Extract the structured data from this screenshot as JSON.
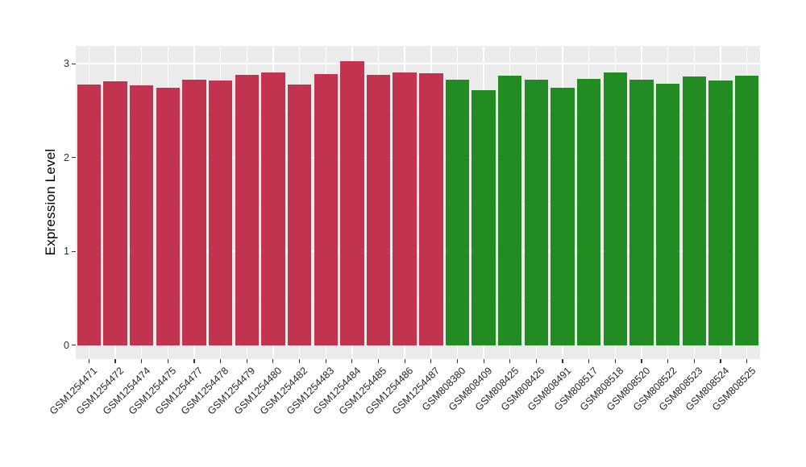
{
  "figure": {
    "background": "#FFFFFF",
    "panel_background": "#EBEBEB",
    "gridline_color": "#FFFFFF",
    "axis_tick_color": "#333333",
    "axis_text_color": "#262626"
  },
  "chart_data": {
    "type": "bar",
    "title": "",
    "xlabel": "",
    "ylabel": "Expression Level",
    "ylim": [
      0,
      3.2
    ],
    "yticks": [
      0,
      1,
      2,
      3
    ],
    "grid": true,
    "legend": false,
    "categories": [
      "GSM1254471",
      "GSM1254472",
      "GSM1254474",
      "GSM1254475",
      "GSM1254477",
      "GSM1254478",
      "GSM1254479",
      "GSM1254480",
      "GSM1254482",
      "GSM1254483",
      "GSM1254484",
      "GSM1254485",
      "GSM1254486",
      "GSM1254487",
      "GSM808380",
      "GSM808409",
      "GSM808425",
      "GSM808426",
      "GSM808491",
      "GSM808517",
      "GSM808518",
      "GSM808520",
      "GSM808522",
      "GSM808523",
      "GSM808524",
      "GSM808525"
    ],
    "values": [
      2.78,
      2.81,
      2.77,
      2.74,
      2.83,
      2.82,
      2.88,
      2.91,
      2.78,
      2.89,
      3.03,
      2.88,
      2.91,
      2.9,
      2.83,
      2.72,
      2.87,
      2.83,
      2.74,
      2.84,
      2.91,
      2.83,
      2.79,
      2.86,
      2.82,
      2.87
    ],
    "bar_groups": [
      "red",
      "red",
      "red",
      "red",
      "red",
      "red",
      "red",
      "red",
      "red",
      "red",
      "red",
      "red",
      "red",
      "red",
      "green",
      "green",
      "green",
      "green",
      "green",
      "green",
      "green",
      "green",
      "green",
      "green",
      "green",
      "green"
    ],
    "group_colors": {
      "red": "#C23350",
      "green": "#228B22"
    }
  }
}
